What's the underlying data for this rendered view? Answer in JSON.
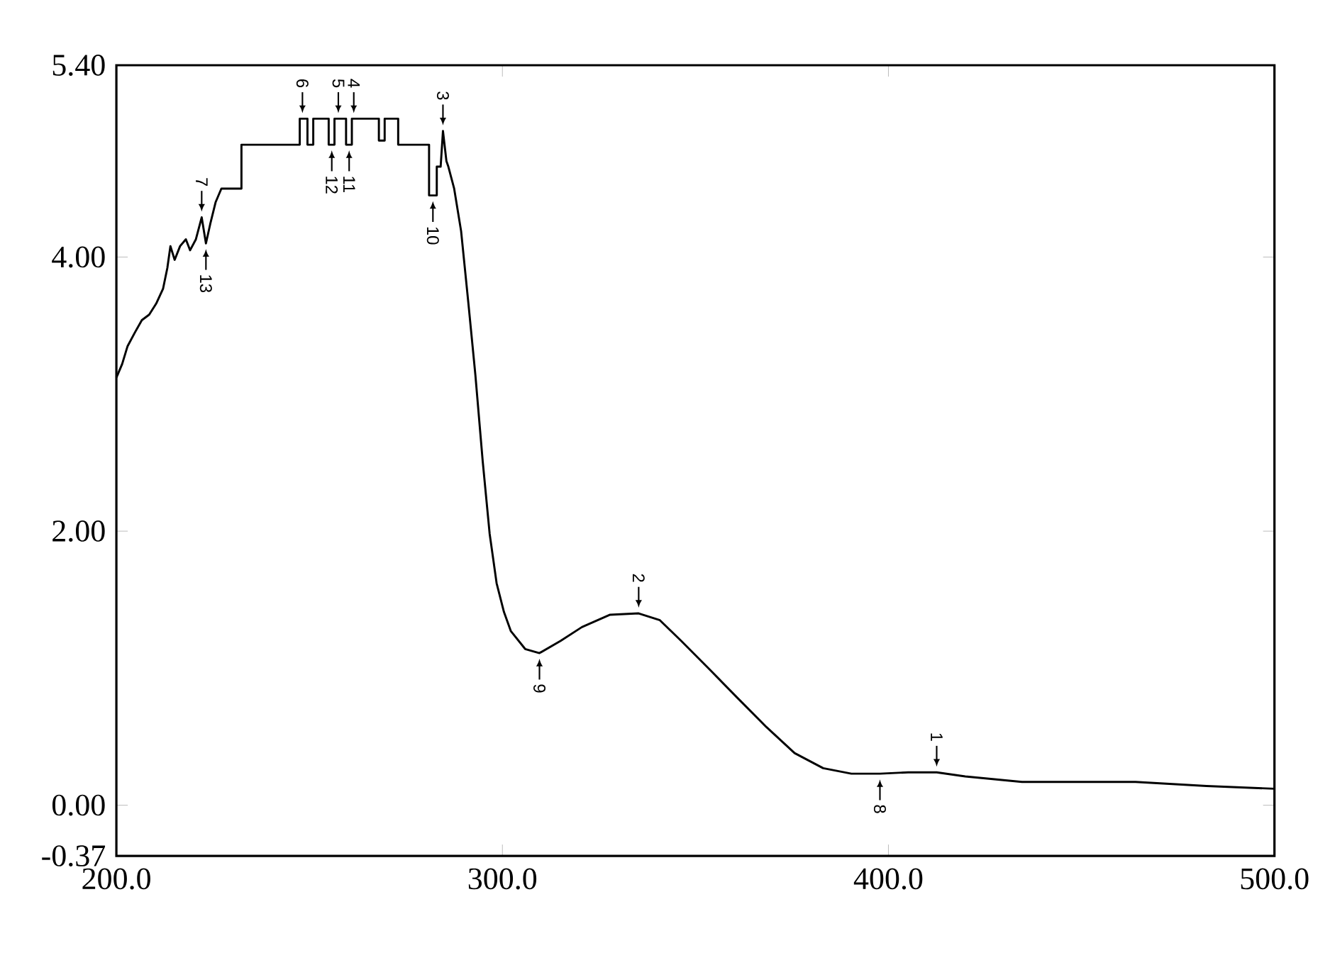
{
  "chart_data": {
    "type": "line",
    "x": [
      200,
      201.5,
      202.9,
      204.8,
      206.6,
      208.5,
      210.3,
      212.1,
      213.2,
      214,
      215.1,
      216.5,
      218,
      219.1,
      220.6,
      222.1,
      223.2,
      224.3,
      225.7,
      227.2,
      232.4,
      232.4,
      247.5,
      247.5,
      249.5,
      249.5,
      251,
      251,
      255,
      255,
      256.5,
      256.5,
      259.5,
      259.5,
      261,
      261,
      268,
      268,
      269.5,
      269.5,
      273,
      273,
      281,
      281,
      283,
      283,
      284,
      284.6,
      285.5,
      286,
      287.5,
      289.3,
      291.2,
      293,
      294.9,
      296.7,
      298.5,
      300.4,
      302.2,
      305.9,
      309.6,
      315.1,
      320.6,
      327.9,
      335.3,
      340.8,
      346.3,
      353.7,
      361,
      368.4,
      375.7,
      383.1,
      390.4,
      397.8,
      405.1,
      412.5,
      419.9,
      434.6,
      464,
      482.4,
      500
    ],
    "values": [
      3.12,
      3.22,
      3.35,
      3.45,
      3.54,
      3.58,
      3.66,
      3.77,
      3.92,
      4.08,
      3.98,
      4.08,
      4.13,
      4.05,
      4.13,
      4.29,
      4.1,
      4.24,
      4.4,
      4.5,
      4.5,
      4.82,
      4.82,
      5.01,
      5.01,
      4.82,
      4.82,
      5.01,
      5.01,
      4.82,
      4.82,
      5.01,
      5.01,
      4.82,
      4.82,
      5.01,
      5.01,
      4.85,
      4.85,
      5.01,
      5.01,
      4.82,
      4.82,
      4.45,
      4.45,
      4.66,
      4.66,
      4.92,
      4.7,
      4.66,
      4.5,
      4.19,
      3.66,
      3.14,
      2.51,
      1.98,
      1.62,
      1.41,
      1.27,
      1.14,
      1.11,
      1.2,
      1.3,
      1.39,
      1.4,
      1.35,
      1.2,
      0.99,
      0.78,
      0.57,
      0.38,
      0.27,
      0.23,
      0.23,
      0.24,
      0.24,
      0.21,
      0.17,
      0.17,
      0.14,
      0.12
    ],
    "color": "#000000",
    "xlim": [
      200,
      500
    ],
    "ylim": [
      -0.37,
      5.4
    ],
    "xticks": [
      {
        "value": 200,
        "label": "200.0"
      },
      {
        "value": 300,
        "label": "300.0"
      },
      {
        "value": 400,
        "label": "400.0"
      },
      {
        "value": 500,
        "label": "500.0"
      }
    ],
    "yticks": [
      {
        "value": -0.37,
        "label": "-0.37"
      },
      {
        "value": 0,
        "label": "0.00"
      },
      {
        "value": 2,
        "label": "2.00"
      },
      {
        "value": 4,
        "label": "4.00"
      },
      {
        "value": 5.4,
        "label": "5.40"
      }
    ],
    "grid": false,
    "annotations": [
      {
        "text": "1",
        "x": 412.5,
        "y": 0.24
      },
      {
        "text": "2",
        "x": 335.3,
        "y": 1.4
      },
      {
        "text": "3",
        "x": 284.6,
        "y": 4.92
      },
      {
        "text": "4",
        "x": 261.5,
        "y": 5.01
      },
      {
        "text": "5",
        "x": 257.5,
        "y": 5.01
      },
      {
        "text": "6",
        "x": 248.2,
        "y": 5.01
      },
      {
        "text": "7",
        "x": 222.1,
        "y": 4.29
      },
      {
        "text": "8",
        "x": 397.8,
        "y": 0.23
      },
      {
        "text": "9",
        "x": 309.6,
        "y": 1.11
      },
      {
        "text": "10",
        "x": 282,
        "y": 4.45
      },
      {
        "text": "11",
        "x": 260.3,
        "y": 4.82
      },
      {
        "text": "12",
        "x": 255.8,
        "y": 4.82
      },
      {
        "text": "13",
        "x": 223.2,
        "y": 4.1
      }
    ]
  }
}
